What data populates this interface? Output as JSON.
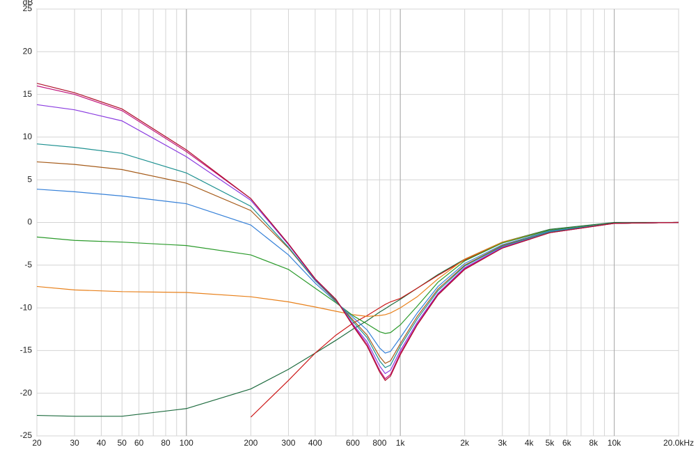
{
  "chart_data": {
    "type": "line",
    "y_label": "dB",
    "xscale": "log",
    "grid": true,
    "x": [
      20,
      30,
      50,
      100,
      200,
      300,
      400,
      500,
      600,
      700,
      800,
      850,
      900,
      1000,
      1200,
      1500,
      2000,
      3000,
      5000,
      10000,
      20000
    ],
    "xlim": [
      20,
      20000
    ],
    "xticks": [
      20,
      30,
      40,
      50,
      60,
      80,
      100,
      200,
      300,
      400,
      600,
      800,
      {
        "value": 1000,
        "label": "1k"
      },
      {
        "value": 2000,
        "label": "2k"
      },
      {
        "value": 3000,
        "label": "3k"
      },
      {
        "value": 4000,
        "label": "4k"
      },
      {
        "value": 5000,
        "label": "5k"
      },
      {
        "value": 6000,
        "label": "6k"
      },
      {
        "value": 8000,
        "label": "8k"
      },
      {
        "value": 10000,
        "label": "10k"
      },
      {
        "value": 20000,
        "label": "20.0kHz"
      }
    ],
    "xgrid_minor": [
      70,
      90,
      500,
      700,
      900,
      7000,
      9000
    ],
    "xgrid_major": [
      100,
      1000,
      10000
    ],
    "ylim": [
      -25,
      25
    ],
    "yticks": [
      -25,
      -20,
      -15,
      -10,
      -5,
      0,
      5,
      10,
      15,
      20,
      25
    ],
    "series": [
      {
        "color": "#1d6b3e",
        "values": [
          -22.6,
          -22.7,
          -22.7,
          -21.8,
          -19.5,
          -17.2,
          -15.3,
          -13.8,
          -12.5,
          -11.5,
          -10.5,
          -10.1,
          -9.7,
          -9,
          -7.7,
          -6.1,
          -4.3,
          -2.3,
          -0.8,
          0,
          0
        ]
      },
      {
        "color": "#cc1818",
        "values": [
          null,
          null,
          null,
          null,
          -22.8,
          -18.5,
          -15.3,
          -13.2,
          -11.8,
          -10.9,
          -10,
          -9.6,
          -9.3,
          -8.9,
          -7.7,
          -6.2,
          -4.4,
          -2.4,
          -0.9,
          -0.1,
          0
        ]
      },
      {
        "color": "#e8801a",
        "values": [
          -7.5,
          -7.9,
          -8.1,
          -8.2,
          -8.7,
          -9.3,
          -9.9,
          -10.4,
          -10.8,
          -11,
          -10.9,
          -10.8,
          -10.6,
          -10,
          -8.7,
          -6.6,
          -4.3,
          -2.3,
          -0.9,
          -0.1,
          0
        ]
      },
      {
        "color": "#2a9a2a",
        "values": [
          -1.7,
          -2.1,
          -2.3,
          -2.7,
          -3.8,
          -5.5,
          -7.7,
          -9.4,
          -10.9,
          -11.9,
          -12.8,
          -13,
          -12.9,
          -12,
          -9.8,
          -7,
          -4.5,
          -2.4,
          -0.9,
          -0.1,
          0
        ]
      },
      {
        "color": "#3580d8",
        "values": [
          3.9,
          3.6,
          3.1,
          2.2,
          -0.3,
          -3.8,
          -7.1,
          -9.3,
          -11.1,
          -12.6,
          -14.7,
          -15.3,
          -15.1,
          -13.5,
          -10.6,
          -7.5,
          -4.8,
          -2.6,
          -1,
          -0.1,
          0
        ]
      },
      {
        "color": "#a55a18",
        "values": [
          7.1,
          6.8,
          6.2,
          4.6,
          1.4,
          -3,
          -6.8,
          -9.2,
          -11.4,
          -13.2,
          -15.7,
          -16.5,
          -16.2,
          -14.2,
          -11,
          -7.8,
          -5,
          -2.7,
          -1.1,
          -0.1,
          0
        ]
      },
      {
        "color": "#1c9090",
        "values": [
          9.2,
          8.8,
          8.1,
          5.8,
          1.9,
          -2.9,
          -6.8,
          -9.1,
          -11.6,
          -13.5,
          -16.2,
          -17,
          -16.7,
          -14.5,
          -11.3,
          -8,
          -5.1,
          -2.8,
          -1.1,
          -0.1,
          0
        ]
      },
      {
        "color": "#8a3be0",
        "values": [
          13.8,
          13.2,
          11.9,
          7.7,
          2.6,
          -2.6,
          -6.7,
          -9,
          -11.9,
          -14,
          -16.8,
          -17.7,
          -17.3,
          -15,
          -11.7,
          -8.3,
          -5.3,
          -2.9,
          -1.2,
          -0.1,
          0
        ]
      },
      {
        "color": "#c0107a",
        "values": [
          16,
          15,
          13.1,
          8.3,
          2.8,
          -2.5,
          -6.6,
          -9,
          -12,
          -14.3,
          -17.3,
          -18.3,
          -17.8,
          -15.3,
          -11.9,
          -8.4,
          -5.4,
          -3,
          -1.2,
          -0.1,
          0
        ]
      },
      {
        "color": "#b0102a",
        "values": [
          16.3,
          15.2,
          13.3,
          8.5,
          2.8,
          -2.5,
          -6.6,
          -9,
          -12.1,
          -14.5,
          -17.5,
          -18.5,
          -18,
          -15.5,
          -12,
          -8.5,
          -5.5,
          -3,
          -1.2,
          -0.1,
          0
        ]
      }
    ]
  }
}
